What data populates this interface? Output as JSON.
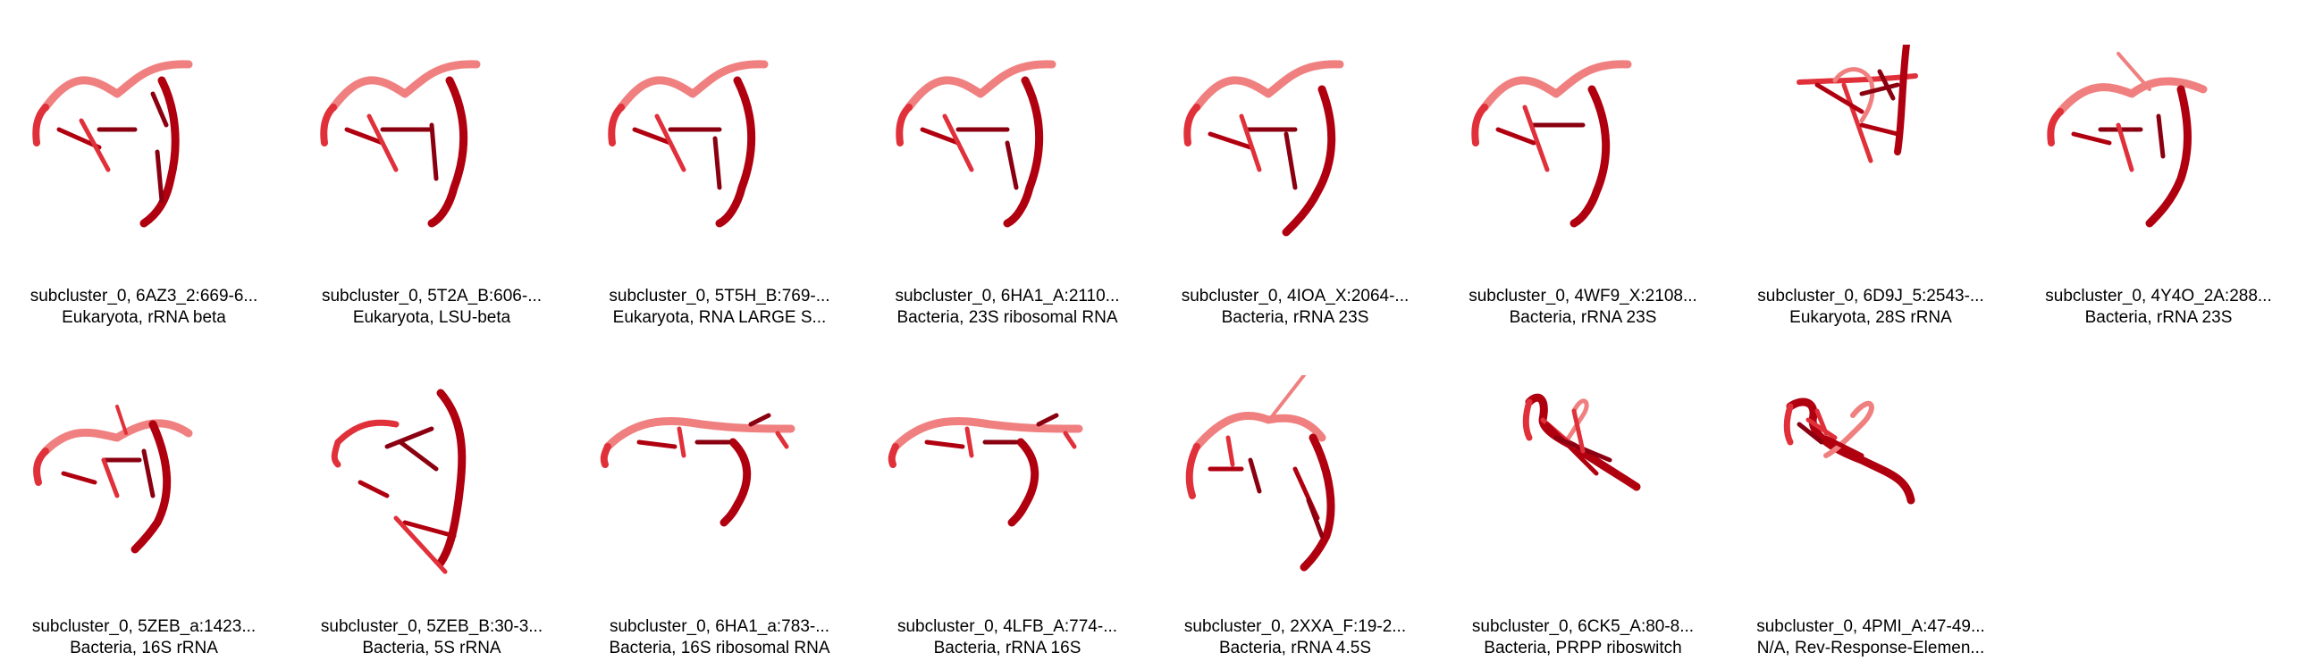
{
  "gallery": {
    "items": [
      {
        "id": "subcluster_0, 6AZ3_2:669-6...",
        "organism": "Eukaryota, rRNA beta"
      },
      {
        "id": "subcluster_0, 5T2A_B:606-...",
        "organism": "Eukaryota, LSU-beta"
      },
      {
        "id": "subcluster_0, 5T5H_B:769-...",
        "organism": "Eukaryota, RNA LARGE S..."
      },
      {
        "id": "subcluster_0, 6HA1_A:2110...",
        "organism": "Bacteria, 23S ribosomal RNA"
      },
      {
        "id": "subcluster_0, 4IOA_X:2064-...",
        "organism": "Bacteria, rRNA 23S"
      },
      {
        "id": "subcluster_0, 4WF9_X:2108...",
        "organism": "Bacteria, rRNA 23S"
      },
      {
        "id": "subcluster_0, 6D9J_5:2543-...",
        "organism": "Eukaryota, 28S rRNA"
      },
      {
        "id": "subcluster_0, 4Y4O_2A:288...",
        "organism": "Bacteria, rRNA 23S"
      },
      {
        "id": "subcluster_0, 5ZEB_a:1423...",
        "organism": "Bacteria, 16S rRNA"
      },
      {
        "id": "subcluster_0, 5ZEB_B:30-3...",
        "organism": "Bacteria, 5S rRNA"
      },
      {
        "id": "subcluster_0, 6HA1_a:783-...",
        "organism": "Bacteria, 16S ribosomal RNA"
      },
      {
        "id": "subcluster_0, 4LFB_A:774-...",
        "organism": "Bacteria, rRNA 16S"
      },
      {
        "id": "subcluster_0, 2XXA_F:19-2...",
        "organism": "Bacteria, rRNA 4.5S"
      },
      {
        "id": "subcluster_0, 6CK5_A:80-8...",
        "organism": "Bacteria, PRPP riboswitch"
      },
      {
        "id": "subcluster_0, 4PMI_A:47-49...",
        "organism": "N/A, Rev-Response-Elemen..."
      }
    ]
  },
  "colors": {
    "light": "#f08080",
    "mid": "#e0303a",
    "dark": "#b00010",
    "darkest": "#8a0010"
  }
}
